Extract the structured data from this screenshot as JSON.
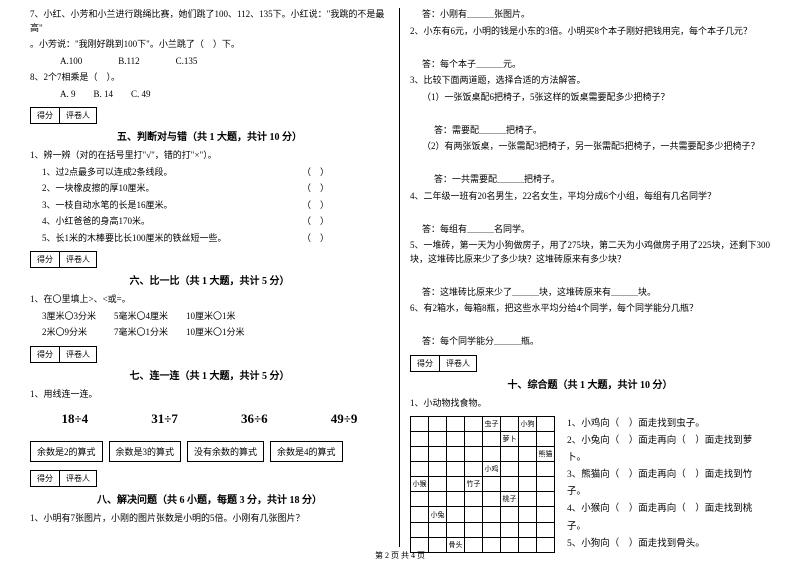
{
  "left": {
    "q7": "7、小红、小芳和小兰进行跳绳比赛，她们跳了100、112、135下。小红说：\"我跳的不是最高\"",
    "q7b": "。小芳说：\"我刚好跳到100下\"。小兰跳了（　）下。",
    "q7opts": "　　A.100　　　　B.112　　　　C.135",
    "q8": "8、2个7相乘是（　）。",
    "q8opts": "　　A. 9　　B. 14　　C. 49",
    "score_a": "得分",
    "score_b": "评卷人",
    "sec5_title": "五、判断对与错（共 1 大题，共计 10 分）",
    "s5_1": "1、辨一辨（对的在括号里打\"√\"，错的打\"×\"）。",
    "s5_1_1": "1、过2点最多可以连成2条线段。",
    "s5_1_2": "2、一块橡皮擦的厚10厘米。",
    "s5_1_3": "3、一枝自动水笔的长是16厘米。",
    "s5_1_4": "4、小红爸爸的身高170米。",
    "s5_1_5": "5、长1米的木棒要比长100厘米的铁丝短一些。",
    "sec6_title": "六、比一比（共 1 大题，共计 5 分）",
    "s6_1": "1、在〇里填上>、<或=。",
    "s6_r1": "3厘米〇3分米　　5毫米〇4厘米　　10厘米〇1米",
    "s6_r2": "2米〇9分米　　　7毫米〇1分米　　10厘米〇1分米",
    "sec7_title": "七、连一连（共 1 大题，共计 5 分）",
    "s7_1": "1、用线连一连。",
    "e1": "18÷4",
    "e2": "31÷7",
    "e3": "36÷6",
    "e4": "49÷9",
    "rb1": "余数是2的算式",
    "rb2": "余数是3的算式",
    "rb3": "没有余数的算式",
    "rb4": "余数是4的算式",
    "sec8_title": "八、解决问题（共 6 小题，每题 3 分，共计 18 分）",
    "s8_1": "1、小明有7张图片，小刚的图片张数是小明的5倍。小刚有几张图片？"
  },
  "right": {
    "a1": "答：小刚有＿＿＿张图片。",
    "q2": "2、小东有6元，小明的钱是小东的3倍。小明买8个本子刚好把钱用完，每个本子几元？",
    "a2": "答：每个本子＿＿＿元。",
    "q3": "3、比较下面两道题，选择合适的方法解答。",
    "q3_1": "（1）一张饭桌配6把椅子，5张这样的饭桌需要配多少把椅子？",
    "a3_1": "答：需要配＿＿＿把椅子。",
    "q3_2": "（2）有两张饭桌，一张需配3把椅子，另一张需配5把椅子，一共需要配多少把椅子？",
    "a3_2": "答：一共需要配＿＿＿把椅子。",
    "q4": "4、二年级一班有20名男生，22名女生，平均分成6个小组，每组有几名同学？",
    "a4": "答：每组有＿＿＿名同学。",
    "q5": "5、一堆砖，第一天为小狗做房子，用了275块，第二天为小鸡做房子用了225块，还剩下300块，这堆砖比原来少了多少块？这堆砖原来有多少块？",
    "a5": "答：这堆砖比原来少了＿＿＿块，这堆砖原来有＿＿＿块。",
    "q6": "6、有2箱水，每箱8瓶，把这些水平均分给4个同学，每个同学能分几瓶？",
    "a6": "答：每个同学能分＿＿＿瓶。",
    "score_a": "得分",
    "score_b": "评卷人",
    "sec10_title": "十、综合题（共 1 大题，共计 10 分）",
    "s10_1": "1、小动物找食物。",
    "g_chongzi": "虫子",
    "g_xiaogou": "小狗",
    "g_luobo": "萝卜",
    "g_xiongmao": "熊猫",
    "g_xiaoji": "小鸡",
    "g_xiaohou": "小猴",
    "g_zhuzi": "竹子",
    "g_taozi": "桃子",
    "g_xiaotu": "小兔",
    "g_gutou": "骨头",
    "side1": "1、小鸡向（　）面走找到虫子。",
    "side2": "2、小兔向（　）面走再向（　）面走找到萝卜。",
    "side3": "3、熊猫向（　）面走再向（　）面走找到竹子。",
    "side4": "4、小猴向（　）面走再向（　）面走找到桃子。",
    "side5": "5、小狗向（　）面走找到骨头。"
  },
  "footer": "第 2 页 共 4 页"
}
